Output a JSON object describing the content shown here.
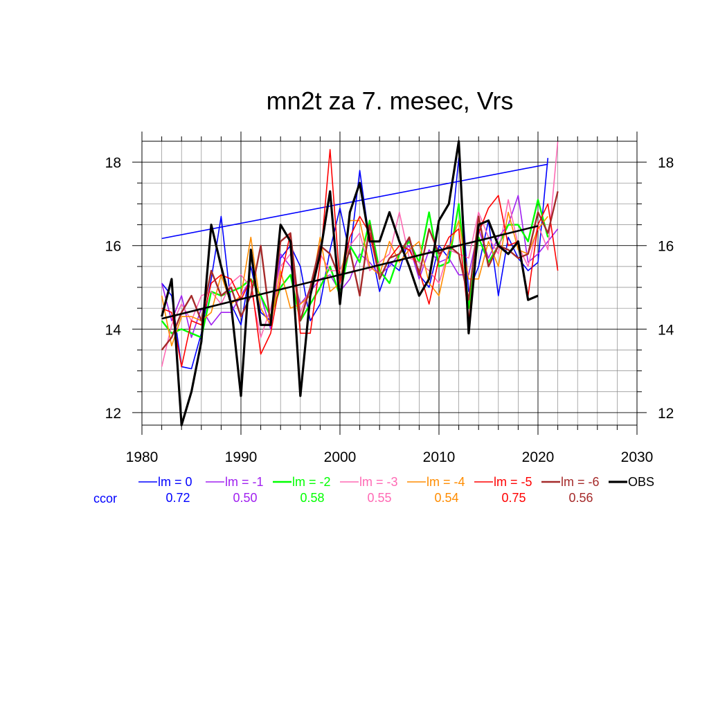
{
  "chart_data": {
    "type": "line",
    "title": "mn2t za 7. mesec, Vrs",
    "xlabel": "",
    "ylabel": "",
    "xlim": [
      1980,
      2030
    ],
    "ylim": [
      11.7,
      18.5
    ],
    "x_ticks": [
      1980,
      1990,
      2000,
      2010,
      2020,
      2030
    ],
    "y_ticks": [
      12,
      14,
      16,
      18
    ],
    "grid": true,
    "legend_position": "bottom",
    "ccor_label": "ccor",
    "series": [
      {
        "name": "lm = 0",
        "color": "#0000ff",
        "ccor": "0.72",
        "width": 1.6,
        "x": [
          1982,
          1983,
          1984,
          1985,
          1986,
          1987,
          1988,
          1989,
          1990,
          1991,
          1992,
          1993,
          1994,
          1995,
          1996,
          1997,
          1998,
          1999,
          2000,
          2001,
          2002,
          2003,
          2004,
          2005,
          2006,
          2007,
          2008,
          2009,
          2010,
          2011,
          2012,
          2013,
          2014,
          2015,
          2016,
          2017,
          2018,
          2019,
          2020,
          2021
        ],
        "y": [
          15.1,
          14.8,
          13.1,
          13.05,
          13.9,
          15.2,
          16.7,
          14.6,
          14.1,
          15.5,
          14.4,
          14.2,
          15.7,
          16.0,
          15.5,
          14.2,
          14.6,
          15.9,
          16.9,
          15.8,
          17.8,
          16.1,
          14.9,
          15.6,
          15.4,
          16.2,
          15.3,
          15.0,
          16.0,
          15.7,
          18.1,
          14.9,
          15.5,
          16.6,
          14.8,
          16.2,
          15.7,
          15.4,
          15.6,
          18.1
        ],
        "trend": [
          16.17,
          17.95
        ]
      },
      {
        "name": "lm = -1",
        "color": "#a020f0",
        "ccor": "0.50",
        "width": 1.6,
        "x": [
          1982,
          1983,
          1984,
          1985,
          1986,
          1987,
          1988,
          1989,
          1990,
          1991,
          1992,
          1993,
          1994,
          1995,
          1996,
          1997,
          1998,
          1999,
          2000,
          2001,
          2002,
          2003,
          2004,
          2005,
          2006,
          2007,
          2008,
          2009,
          2010,
          2011,
          2012,
          2013,
          2014,
          2015,
          2016,
          2017,
          2018,
          2019,
          2020,
          2021,
          2022
        ],
        "y": [
          15.1,
          14.2,
          14.8,
          13.8,
          14.5,
          14.1,
          14.4,
          14.4,
          14.8,
          15.2,
          14.8,
          14.0,
          15.8,
          15.5,
          14.6,
          14.9,
          15.2,
          15.3,
          14.9,
          15.2,
          15.8,
          15.6,
          15.3,
          15.5,
          15.8,
          16.0,
          15.2,
          15.9,
          15.6,
          15.7,
          15.3,
          15.3,
          16.4,
          15.7,
          16.2,
          16.5,
          17.2,
          15.6,
          15.8,
          16.1,
          16.4
        ]
      },
      {
        "name": "lm = -2",
        "color": "#00ff00",
        "ccor": "0.58",
        "width": 2.4,
        "x": [
          1982,
          1983,
          1984,
          1985,
          1986,
          1987,
          1988,
          1989,
          1990,
          1991,
          1992,
          1993,
          1994,
          1995,
          1996,
          1997,
          1998,
          1999,
          2000,
          2001,
          2002,
          2003,
          2004,
          2005,
          2006,
          2007,
          2008,
          2009,
          2010,
          2011,
          2012,
          2013,
          2014,
          2015,
          2016,
          2017,
          2018,
          2019,
          2020,
          2021
        ],
        "y": [
          14.2,
          13.9,
          14.0,
          13.9,
          13.8,
          14.9,
          14.8,
          14.9,
          15.0,
          15.2,
          14.8,
          14.3,
          15.0,
          15.3,
          14.2,
          14.6,
          15.0,
          15.5,
          14.8,
          16.0,
          15.6,
          16.6,
          15.4,
          15.1,
          15.8,
          16.1,
          15.6,
          16.8,
          15.5,
          15.6,
          17.0,
          14.5,
          16.2,
          15.6,
          16.0,
          16.5,
          16.5,
          16.1,
          17.1,
          16.2
        ]
      },
      {
        "name": "lm = -3",
        "color": "#ff69b4",
        "ccor": "0.55",
        "width": 1.6,
        "x": [
          1982,
          1983,
          1984,
          1985,
          1986,
          1987,
          1988,
          1989,
          1990,
          1991,
          1992,
          1993,
          1994,
          1995,
          1996,
          1997,
          1998,
          1999,
          2000,
          2001,
          2002,
          2003,
          2004,
          2005,
          2006,
          2007,
          2008,
          2009,
          2010,
          2011,
          2012,
          2013,
          2014,
          2015,
          2016,
          2017,
          2018,
          2019,
          2020,
          2021,
          2022
        ],
        "y": [
          13.1,
          14.1,
          14.6,
          14.2,
          14.8,
          14.9,
          14.6,
          15.1,
          15.3,
          15.0,
          13.8,
          14.5,
          15.5,
          15.8,
          14.4,
          15.0,
          15.8,
          15.4,
          15.4,
          16.0,
          16.3,
          15.4,
          15.6,
          15.8,
          16.8,
          15.7,
          15.6,
          15.4,
          15.1,
          15.9,
          15.8,
          15.7,
          16.8,
          16.2,
          15.8,
          17.1,
          16.0,
          15.5,
          16.5,
          15.9,
          18.5
        ]
      },
      {
        "name": "lm = -4",
        "color": "#ff8c00",
        "ccor": "0.54",
        "width": 1.6,
        "x": [
          1982,
          1983,
          1984,
          1985,
          1986,
          1987,
          1988,
          1989,
          1990,
          1991,
          1992,
          1993,
          1994,
          1995,
          1996,
          1997,
          1998,
          1999,
          2000,
          2001,
          2002,
          2003,
          2004,
          2005,
          2006,
          2007,
          2008,
          2009,
          2010,
          2011,
          2012,
          2013,
          2014,
          2015,
          2016,
          2017,
          2018,
          2019,
          2020,
          2021
        ],
        "y": [
          14.8,
          13.6,
          14.3,
          14.3,
          14.2,
          14.4,
          15.3,
          14.6,
          14.8,
          16.2,
          14.5,
          14.1,
          15.4,
          14.5,
          14.6,
          14.8,
          16.2,
          14.9,
          15.1,
          16.6,
          16.6,
          15.5,
          15.3,
          16.1,
          15.6,
          15.9,
          16.1,
          15.1,
          14.8,
          15.9,
          16.6,
          15.2,
          15.2,
          16.1,
          15.5,
          16.8,
          15.9,
          15.8,
          16.4,
          16.7
        ]
      },
      {
        "name": "lm = -5",
        "color": "#ff0000",
        "ccor": "0.75",
        "width": 1.6,
        "x": [
          1982,
          1983,
          1984,
          1985,
          1986,
          1987,
          1988,
          1989,
          1990,
          1991,
          1992,
          1993,
          1994,
          1995,
          1996,
          1997,
          1998,
          1999,
          2000,
          2001,
          2002,
          2003,
          2004,
          2005,
          2006,
          2007,
          2008,
          2009,
          2010,
          2011,
          2012,
          2013,
          2014,
          2015,
          2016,
          2017,
          2018,
          2019,
          2020,
          2021,
          2022
        ],
        "y": [
          14.5,
          14.4,
          13.1,
          14.2,
          14.1,
          15.1,
          15.3,
          15.2,
          14.7,
          15.2,
          13.4,
          13.9,
          15.2,
          16.3,
          13.9,
          13.9,
          15.6,
          18.3,
          15.1,
          16.2,
          16.7,
          16.3,
          15.2,
          15.7,
          16.0,
          15.9,
          15.4,
          14.6,
          15.7,
          16.2,
          16.4,
          14.2,
          16.3,
          16.9,
          17.2,
          16.0,
          16.1,
          14.8,
          16.5,
          17.0,
          15.4
        ]
      },
      {
        "name": "lm = -6",
        "color": "#a52a2a",
        "ccor": "0.56",
        "width": 2.4,
        "x": [
          1982,
          1983,
          1984,
          1985,
          1986,
          1987,
          1988,
          1989,
          1990,
          1991,
          1992,
          1993,
          1994,
          1995,
          1996,
          1997,
          1998,
          1999,
          2000,
          2001,
          2002,
          2003,
          2004,
          2005,
          2006,
          2007,
          2008,
          2009,
          2010,
          2011,
          2012,
          2013,
          2014,
          2015,
          2016,
          2017,
          2018,
          2019,
          2020,
          2021,
          2022
        ],
        "y": [
          13.5,
          13.8,
          14.4,
          14.8,
          14.2,
          15.4,
          14.8,
          15.0,
          14.3,
          14.8,
          16.0,
          14.1,
          16.1,
          16.3,
          14.2,
          15.0,
          16.0,
          15.8,
          15.2,
          15.9,
          14.8,
          16.5,
          15.2,
          15.7,
          15.8,
          16.2,
          15.3,
          16.4,
          15.8,
          16.0,
          15.8,
          14.7,
          16.7,
          15.5,
          16.0,
          15.9,
          15.7,
          15.8,
          16.8,
          16.3,
          17.3
        ]
      },
      {
        "name": "OBS",
        "color": "#000000",
        "ccor": "",
        "width": 3.2,
        "x": [
          1982,
          1983,
          1984,
          1985,
          1986,
          1987,
          1988,
          1989,
          1990,
          1991,
          1992,
          1993,
          1994,
          1995,
          1996,
          1997,
          1998,
          1999,
          2000,
          2001,
          2002,
          2003,
          2004,
          2005,
          2006,
          2007,
          2008,
          2009,
          2010,
          2011,
          2012,
          2013,
          2014,
          2015,
          2016,
          2017,
          2018,
          2019,
          2020
        ],
        "y": [
          14.3,
          15.2,
          11.7,
          12.5,
          13.7,
          16.5,
          15.5,
          14.6,
          12.4,
          15.9,
          14.1,
          14.1,
          16.5,
          16.1,
          12.4,
          14.8,
          15.8,
          17.3,
          14.6,
          16.8,
          17.5,
          16.1,
          16.1,
          16.8,
          16.1,
          15.5,
          14.8,
          15.2,
          16.6,
          17.0,
          18.5,
          13.9,
          16.5,
          16.6,
          16.0,
          15.8,
          16.1,
          14.7,
          14.8
        ],
        "trend": [
          14.25,
          16.47
        ]
      }
    ]
  }
}
